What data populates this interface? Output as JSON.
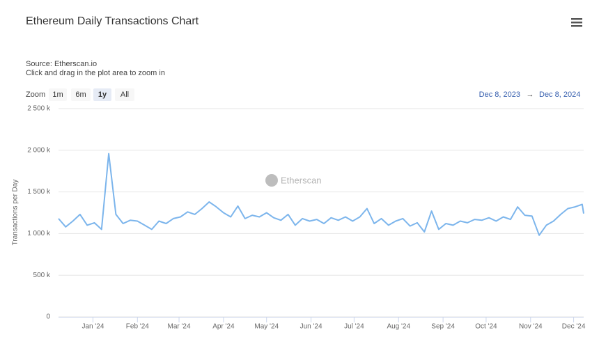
{
  "chart_data": {
    "type": "line",
    "title": "Ethereum Daily Transactions Chart",
    "subtitle": "Source: Etherscan.io",
    "note": "Click and drag in the plot area to zoom in",
    "zoom_label": "Zoom",
    "zoom_buttons": [
      "1m",
      "6m",
      "1y",
      "All"
    ],
    "zoom_selected": 2,
    "range_from": "Dec 8, 2023",
    "range_arrow": "→",
    "range_to": "Dec 8, 2024",
    "watermark": "Etherscan",
    "y_label": "Transactions per Day",
    "grid": true,
    "xlim": [
      "2023-12-08",
      "2024-12-08"
    ],
    "xticks": [
      {
        "value": "2024-01-01",
        "label": "Jan '24"
      },
      {
        "value": "2024-02-01",
        "label": "Feb '24"
      },
      {
        "value": "2024-03-01",
        "label": "Mar '24"
      },
      {
        "value": "2024-04-01",
        "label": "Apr '24"
      },
      {
        "value": "2024-05-01",
        "label": "May '24"
      },
      {
        "value": "2024-06-01",
        "label": "Jun '24"
      },
      {
        "value": "2024-07-01",
        "label": "Jul '24"
      },
      {
        "value": "2024-08-01",
        "label": "Aug '24"
      },
      {
        "value": "2024-09-01",
        "label": "Sep '24"
      },
      {
        "value": "2024-10-01",
        "label": "Oct '24"
      },
      {
        "value": "2024-11-01",
        "label": "Nov '24"
      },
      {
        "value": "2024-12-01",
        "label": "Dec '24"
      }
    ],
    "ylim": [
      0,
      2500000
    ],
    "yticks": [
      0,
      {
        "value": 500000,
        "label": "500 k"
      },
      {
        "value": 1000000,
        "label": "1 000 k"
      },
      {
        "value": 1500000,
        "label": "1 500 k"
      },
      {
        "value": 2000000,
        "label": "2 000 k"
      },
      {
        "value": 2500000,
        "label": "2 500 k"
      }
    ],
    "x": [
      "2023-12-08",
      "2023-12-13",
      "2023-12-18",
      "2023-12-23",
      "2023-12-28",
      "2024-01-02",
      "2024-01-07",
      "2024-01-12",
      "2024-01-17",
      "2024-01-22",
      "2024-01-27",
      "2024-02-01",
      "2024-02-06",
      "2024-02-11",
      "2024-02-16",
      "2024-02-21",
      "2024-02-26",
      "2024-03-02",
      "2024-03-07",
      "2024-03-12",
      "2024-03-17",
      "2024-03-22",
      "2024-03-27",
      "2024-04-01",
      "2024-04-06",
      "2024-04-11",
      "2024-04-16",
      "2024-04-21",
      "2024-04-26",
      "2024-05-01",
      "2024-05-06",
      "2024-05-11",
      "2024-05-16",
      "2024-05-21",
      "2024-05-26",
      "2024-05-31",
      "2024-06-05",
      "2024-06-10",
      "2024-06-15",
      "2024-06-20",
      "2024-06-25",
      "2024-06-30",
      "2024-07-05",
      "2024-07-10",
      "2024-07-15",
      "2024-07-20",
      "2024-07-25",
      "2024-07-30",
      "2024-08-04",
      "2024-08-09",
      "2024-08-14",
      "2024-08-19",
      "2024-08-24",
      "2024-08-29",
      "2024-09-03",
      "2024-09-08",
      "2024-09-13",
      "2024-09-18",
      "2024-09-23",
      "2024-09-28",
      "2024-10-03",
      "2024-10-08",
      "2024-10-13",
      "2024-10-18",
      "2024-10-23",
      "2024-10-28",
      "2024-11-02",
      "2024-11-07",
      "2024-11-12",
      "2024-11-17",
      "2024-11-22",
      "2024-11-27",
      "2024-12-02",
      "2024-12-07",
      "2024-12-08"
    ],
    "series": [
      {
        "name": "Transactions",
        "color": "#7cb5ec",
        "values": [
          1180000,
          1080000,
          1150000,
          1230000,
          1100000,
          1130000,
          1050000,
          1960000,
          1230000,
          1120000,
          1160000,
          1150000,
          1100000,
          1050000,
          1150000,
          1120000,
          1180000,
          1200000,
          1260000,
          1230000,
          1300000,
          1380000,
          1320000,
          1250000,
          1200000,
          1330000,
          1180000,
          1220000,
          1200000,
          1250000,
          1190000,
          1160000,
          1230000,
          1100000,
          1180000,
          1150000,
          1170000,
          1120000,
          1190000,
          1160000,
          1200000,
          1150000,
          1200000,
          1300000,
          1120000,
          1180000,
          1100000,
          1150000,
          1180000,
          1090000,
          1130000,
          1020000,
          1270000,
          1050000,
          1120000,
          1100000,
          1150000,
          1130000,
          1170000,
          1160000,
          1190000,
          1150000,
          1200000,
          1170000,
          1320000,
          1220000,
          1210000,
          980000,
          1100000,
          1150000,
          1230000,
          1300000,
          1320000,
          1350000,
          1240000
        ]
      }
    ]
  }
}
